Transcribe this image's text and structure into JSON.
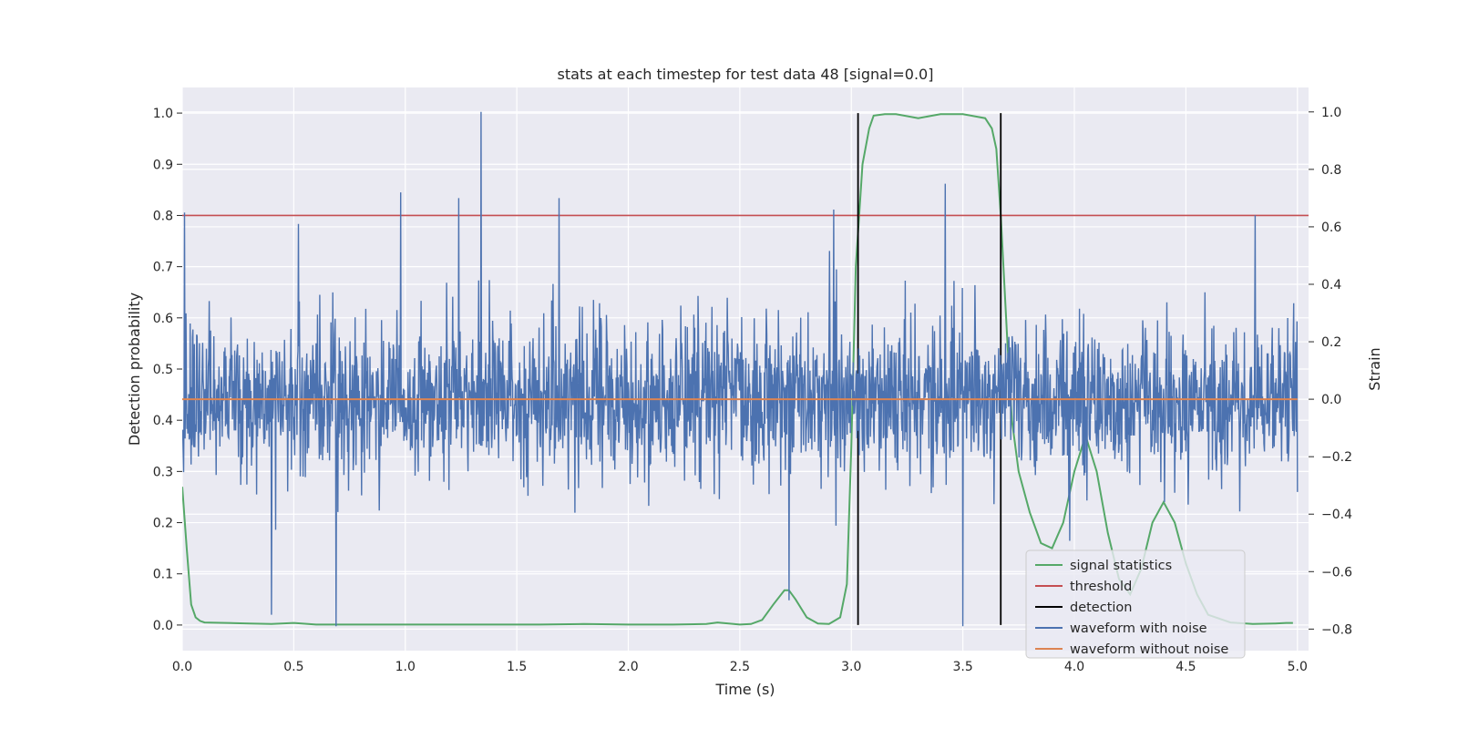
{
  "chart_data": {
    "type": "line",
    "title": "stats at each timestep for test data 48 [signal=0.0]",
    "xlabel": "Time (s)",
    "ylabel": "Detection probability",
    "y2label": "Strain",
    "xlim": [
      0.0,
      5.05
    ],
    "ylim": [
      -0.05,
      1.05
    ],
    "y2lim": [
      -0.875,
      1.085
    ],
    "xticks": [
      "0.0",
      "0.5",
      "1.0",
      "1.5",
      "2.0",
      "2.5",
      "3.0",
      "3.5",
      "4.0",
      "4.5",
      "5.0"
    ],
    "yticks": [
      "0.0",
      "0.1",
      "0.2",
      "0.3",
      "0.4",
      "0.5",
      "0.6",
      "0.7",
      "0.8",
      "0.9",
      "1.0"
    ],
    "y2ticks": [
      "−0.8",
      "−0.6",
      "−0.4",
      "−0.2",
      "0.0",
      "0.2",
      "0.4",
      "0.6",
      "0.8",
      "1.0"
    ],
    "grid": true,
    "legend_position": "lower-right",
    "threshold": 0.8,
    "detections": [
      3.03,
      3.67
    ],
    "colors": {
      "signal": "#55a868",
      "threshold": "#c44e52",
      "detection": "#000000",
      "noise": "#4c72b0",
      "clean": "#dd8452",
      "background": "#eaeaf2",
      "grid": "#ffffff"
    },
    "series": [
      {
        "name": "signal statistics",
        "axis": "left",
        "x": [
          0.0,
          0.02,
          0.04,
          0.06,
          0.08,
          0.1,
          0.2,
          0.3,
          0.4,
          0.5,
          0.6,
          0.8,
          1.0,
          1.2,
          1.4,
          1.6,
          1.8,
          2.0,
          2.2,
          2.35,
          2.4,
          2.45,
          2.5,
          2.55,
          2.6,
          2.65,
          2.7,
          2.72,
          2.75,
          2.8,
          2.85,
          2.9,
          2.95,
          2.98,
          3.0,
          3.02,
          3.05,
          3.08,
          3.1,
          3.15,
          3.2,
          3.3,
          3.4,
          3.5,
          3.6,
          3.63,
          3.65,
          3.67,
          3.7,
          3.72,
          3.75,
          3.8,
          3.85,
          3.9,
          3.95,
          4.0,
          4.05,
          4.1,
          4.15,
          4.2,
          4.25,
          4.3,
          4.35,
          4.4,
          4.45,
          4.5,
          4.55,
          4.6,
          4.7,
          4.8,
          4.9,
          4.95,
          4.98
        ],
        "y": [
          0.27,
          0.15,
          0.04,
          0.015,
          0.008,
          0.005,
          0.004,
          0.003,
          0.002,
          0.004,
          0.001,
          0.001,
          0.001,
          0.001,
          0.001,
          0.001,
          0.002,
          0.001,
          0.001,
          0.002,
          0.005,
          0.003,
          0.001,
          0.002,
          0.01,
          0.04,
          0.068,
          0.068,
          0.05,
          0.015,
          0.003,
          0.002,
          0.015,
          0.08,
          0.35,
          0.7,
          0.9,
          0.97,
          0.995,
          0.998,
          0.998,
          0.99,
          0.998,
          0.998,
          0.99,
          0.97,
          0.93,
          0.8,
          0.55,
          0.4,
          0.3,
          0.22,
          0.16,
          0.15,
          0.2,
          0.3,
          0.37,
          0.3,
          0.18,
          0.09,
          0.06,
          0.11,
          0.2,
          0.24,
          0.2,
          0.12,
          0.06,
          0.02,
          0.005,
          0.002,
          0.003,
          0.004,
          0.004
        ]
      },
      {
        "name": "threshold",
        "axis": "left",
        "x": [
          0.0,
          5.05
        ],
        "y": [
          0.8,
          0.8
        ]
      },
      {
        "name": "detection",
        "axis": "left",
        "x": [
          3.03,
          3.67
        ],
        "y": [
          0.0,
          1.0
        ]
      },
      {
        "name": "waveform with noise",
        "axis": "right",
        "noise_std": 0.13,
        "x_range": [
          0.0,
          5.0
        ],
        "spikes": [
          [
            0.01,
            0.65
          ],
          [
            0.52,
            0.61
          ],
          [
            0.98,
            0.72
          ],
          [
            1.24,
            0.7
          ],
          [
            1.34,
            1.0
          ],
          [
            1.69,
            0.7
          ],
          [
            2.92,
            0.66
          ],
          [
            3.42,
            0.75
          ],
          [
            4.81,
            0.64
          ],
          [
            0.69,
            -0.79
          ],
          [
            3.5,
            -0.79
          ],
          [
            2.72,
            -0.7
          ],
          [
            0.4,
            -0.75
          ]
        ]
      },
      {
        "name": "waveform without noise",
        "axis": "right",
        "x": [
          0.0,
          5.0
        ],
        "y": [
          0.0,
          0.0
        ]
      }
    ]
  }
}
